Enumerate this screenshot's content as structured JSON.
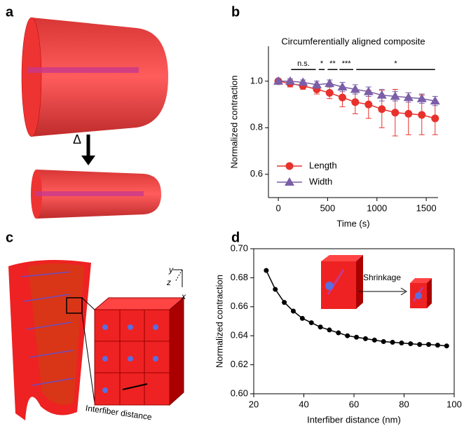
{
  "panel_labels": [
    "a",
    "b",
    "c",
    "d"
  ],
  "illustrations": {
    "a": {
      "arrow_label": "Δ"
    },
    "c": {
      "axes": [
        "y",
        "z",
        "x"
      ],
      "label": "Interfiber distance"
    },
    "d": {
      "inset_label": "Shrinkage"
    }
  },
  "chart_data": [
    {
      "type": "line",
      "title": "Circumferentially aligned composite",
      "x_label": "Time (s)",
      "y_label": "Normalized contraction",
      "x": [
        0,
        120,
        250,
        390,
        520,
        650,
        780,
        915,
        1050,
        1185,
        1320,
        1455,
        1590
      ],
      "xlim": [
        -100,
        1620
      ],
      "xticks": [
        0,
        500,
        1000,
        1500
      ],
      "ylim": [
        0.5,
        1.15
      ],
      "yticks": [
        0.6,
        0.8,
        {
          "value": 1.0,
          "label": "1.0"
        }
      ],
      "legend": "lower left",
      "series": [
        {
          "name": "Length",
          "color": "#e8312c",
          "marker": "circle",
          "values": [
            1.0,
            0.99,
            0.98,
            0.965,
            0.95,
            0.93,
            0.91,
            0.9,
            0.88,
            0.865,
            0.86,
            0.855,
            0.84
          ],
          "errors": [
            0.01,
            0.015,
            0.015,
            0.02,
            0.025,
            0.04,
            0.05,
            0.06,
            0.08,
            0.1,
            0.09,
            0.085,
            0.07
          ]
        },
        {
          "name": "Width",
          "color": "#7b5ea7",
          "marker": "triangle",
          "values": [
            1.0,
            1.0,
            0.995,
            0.985,
            0.99,
            0.975,
            0.965,
            0.955,
            0.94,
            0.935,
            0.93,
            0.925,
            0.915
          ],
          "errors": [
            0.01,
            0.01,
            0.01,
            0.015,
            0.015,
            0.02,
            0.02,
            0.02,
            0.025,
            0.02,
            0.02,
            0.02,
            0.02
          ]
        }
      ],
      "annotations": [
        {
          "label": "n.s.",
          "x": [
            130,
            380
          ],
          "y": 1.05
        },
        {
          "label": "*",
          "x": [
            410,
            470
          ],
          "y": 1.05
        },
        {
          "label": "**",
          "x": [
            500,
            600
          ],
          "y": 1.05
        },
        {
          "label": "***",
          "x": [
            620,
            760
          ],
          "y": 1.05
        },
        {
          "label": "*",
          "x": [
            790,
            1590
          ],
          "y": 1.05
        }
      ]
    },
    {
      "type": "line",
      "x_label": "Interfiber distance (nm)",
      "y_label": "Normalized contraction",
      "x": [
        25,
        28.6,
        32.2,
        35.8,
        39.4,
        43,
        46.6,
        50.2,
        53.8,
        57.4,
        61,
        64.6,
        68.2,
        71.8,
        75.4,
        79,
        82.6,
        86.2,
        89.8,
        93.4,
        97
      ],
      "xlim": [
        20,
        100
      ],
      "xticks": [
        20,
        40,
        60,
        80,
        100
      ],
      "ylim": [
        0.6,
        0.7
      ],
      "yticks": [
        {
          "value": 0.6,
          "label": "0.60"
        },
        0.62,
        0.64,
        0.66,
        0.68,
        {
          "value": 0.7,
          "label": "0.70"
        }
      ],
      "series": [
        {
          "color": "#000000",
          "marker": "circle",
          "values": [
            0.685,
            0.672,
            0.663,
            0.657,
            0.652,
            0.649,
            0.646,
            0.644,
            0.642,
            0.64,
            0.639,
            0.638,
            0.637,
            0.636,
            0.6355,
            0.635,
            0.6345,
            0.634,
            0.634,
            0.6335,
            0.633
          ]
        }
      ]
    }
  ]
}
